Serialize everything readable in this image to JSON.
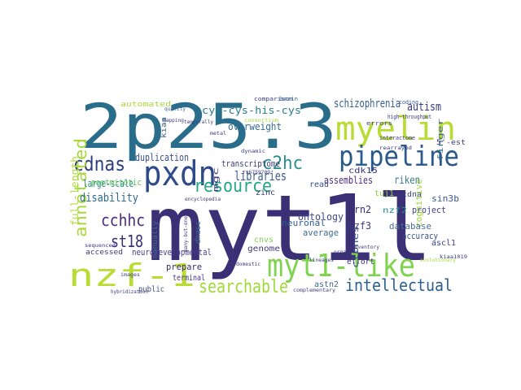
{
  "word_cloud": {
    "words": [
      {
        "text": "myt1l",
        "color": "#3b2f75"
      },
      {
        "text": "2p25.3",
        "color": "#2a6d8a"
      },
      {
        "text": "myelin",
        "color": "#b9dc34"
      },
      {
        "text": "pipeline",
        "color": "#2a5a8c"
      },
      {
        "text": "myt1-like",
        "color": "#7fd34e"
      },
      {
        "text": "nzf-1",
        "color": "#b9dc34"
      },
      {
        "text": "pxdn",
        "color": "#2f4a8a"
      },
      {
        "text": "resource",
        "color": "#22a884"
      },
      {
        "text": "searchable",
        "color": "#a0da39"
      },
      {
        "text": "intellectual",
        "color": "#2a5f8f"
      },
      {
        "text": "cdnas",
        "color": "#2d3e80"
      },
      {
        "text": "c2hc",
        "color": "#2d8d8c"
      },
      {
        "text": "cchhc",
        "color": "#4c2a7d"
      },
      {
        "text": "annotated",
        "color": "#a9d93a"
      },
      {
        "text": "st18",
        "color": "#3a2e76"
      },
      {
        "text": "libraries",
        "color": "#3b5c8c"
      },
      {
        "text": "schizophrenia",
        "color": "#35608d"
      },
      {
        "text": "cys-cys-his-cys",
        "color": "#2c7b8e"
      },
      {
        "text": "overweight",
        "color": "#2f6b8e"
      },
      {
        "text": "autism",
        "color": "#3b3b7d"
      },
      {
        "text": "disability",
        "color": "#2e6a8d"
      },
      {
        "text": "duplication",
        "color": "#3a4f86"
      },
      {
        "text": "transcriptome",
        "color": "#3d3d80"
      },
      {
        "text": "large-scale",
        "color": "#2e8b8a"
      },
      {
        "text": "full-length",
        "color": "#b0dc3b"
      },
      {
        "text": "postmitotic",
        "color": "#5fc35f"
      },
      {
        "text": "ontology",
        "color": "#3b4a85"
      },
      {
        "text": "assemblies",
        "color": "#4a2c7a"
      },
      {
        "text": "cognitive",
        "color": "#9ed93a"
      },
      {
        "text": "database",
        "color": "#4a6b8e"
      },
      {
        "text": "accuracy",
        "color": "#3b4e84"
      },
      {
        "text": "riken",
        "color": "#3a7b8c"
      },
      {
        "text": "project",
        "color": "#41418a"
      },
      {
        "text": "brn2",
        "color": "#3b2a74"
      },
      {
        "text": "nzf3",
        "color": "#3a3a80"
      },
      {
        "text": "neuronal",
        "color": "#2f5f8c"
      },
      {
        "text": "average",
        "color": "#3d6b8f"
      },
      {
        "text": "neurodevelopmental",
        "color": "#4a3c83"
      },
      {
        "text": "prepare",
        "color": "#3a2a70"
      },
      {
        "text": "terminal",
        "color": "#443083"
      },
      {
        "text": "public",
        "color": "#3f4e88"
      },
      {
        "text": "genome",
        "color": "#3d3a7f"
      },
      {
        "text": "cnvs",
        "color": "#7ecf4f"
      },
      {
        "text": "astn2",
        "color": "#3d6b8e"
      },
      {
        "text": "zinc",
        "color": "#3d3a7f"
      },
      {
        "text": "read",
        "color": "#3c4f86"
      },
      {
        "text": "cdk15",
        "color": "#3a2f78"
      },
      {
        "text": "sin3b",
        "color": "#3a5a8c"
      },
      {
        "text": "tuj1",
        "color": "#8fd044"
      },
      {
        "text": "ascl1",
        "color": "#3a3f81"
      },
      {
        "text": "nzf2",
        "color": "#2a8a8a"
      },
      {
        "text": "clones",
        "color": "#3c4a86"
      },
      {
        "text": "effort",
        "color": "#3a2e76"
      },
      {
        "text": "accessed",
        "color": "#3d3a7f"
      },
      {
        "text": "manually",
        "color": "#3d6d8e"
      },
      {
        "text": "kiaa",
        "color": "#3a5f8c"
      },
      {
        "text": "automated",
        "color": "#a9d93a"
      },
      {
        "text": "mgc",
        "color": "#3d3a7f"
      },
      {
        "text": "finger",
        "color": "#3a6a8d"
      },
      {
        "text": "5'-est",
        "color": "#3a3a80"
      },
      {
        "text": "cdna",
        "color": "#3a3a80"
      },
      {
        "text": "dnasc",
        "color": "#3a6a8d"
      },
      {
        "text": "coding",
        "color": "#3a5a8c"
      },
      {
        "text": "comparison",
        "color": "#3a3a80"
      },
      {
        "text": "brain",
        "color": "#2e6a8d"
      },
      {
        "text": "consortium",
        "color": "#a9d93a"
      },
      {
        "text": "high-throughput",
        "color": "#3a3a80"
      },
      {
        "text": "errors",
        "color": "#3a4a86"
      },
      {
        "text": "interactome",
        "color": "#3a3a80"
      },
      {
        "text": "rearrayed",
        "color": "#3a3a80"
      },
      {
        "text": "evolutionary",
        "color": "#a9d93a"
      },
      {
        "text": "mapping",
        "color": "#3a3a80"
      },
      {
        "text": "quality",
        "color": "#3a6a8d"
      },
      {
        "text": "temporally",
        "color": "#3a3a80"
      },
      {
        "text": "sequenced",
        "color": "#3a3a80"
      },
      {
        "text": "encyclopedia",
        "color": "#3a3a80"
      },
      {
        "text": "inventory",
        "color": "#3a3a80"
      },
      {
        "text": "hybridization",
        "color": "#3a3a80"
      },
      {
        "text": "complementary",
        "color": "#3a3a80"
      },
      {
        "text": "lineages",
        "color": "#3a3a80"
      },
      {
        "text": "images",
        "color": "#3a3a80"
      },
      {
        "text": "organism",
        "color": "#3a3a80"
      },
      {
        "text": "domestic",
        "color": "#3a3a80"
      },
      {
        "text": "many-but-one",
        "color": "#3a3a80"
      },
      {
        "text": "kiaa1019",
        "color": "#3a3a80"
      },
      {
        "text": "metal",
        "color": "#3a3a80"
      },
      {
        "text": "dynamic",
        "color": "#3a3a80"
      },
      {
        "text": "rs6759709",
        "color": "#3a3a80"
      }
    ]
  }
}
